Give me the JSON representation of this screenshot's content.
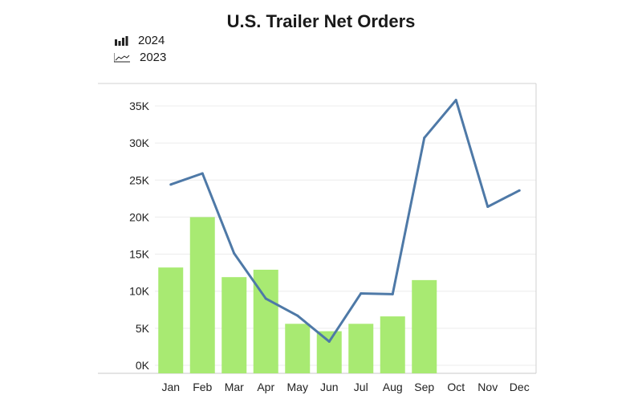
{
  "chart_data": {
    "type": "bar",
    "title": "U.S. Trailer Net Orders",
    "xlabel": "",
    "ylabel": "",
    "categories": [
      "Jan",
      "Feb",
      "Mar",
      "Apr",
      "May",
      "Jun",
      "Jul",
      "Aug",
      "Sep",
      "Oct",
      "Nov",
      "Dec"
    ],
    "ylim": [
      0,
      37500
    ],
    "yticks": [
      0,
      5000,
      10000,
      15000,
      20000,
      25000,
      30000,
      35000
    ],
    "ytick_labels": [
      "0K",
      "5K",
      "10K",
      "15K",
      "20K",
      "25K",
      "30K",
      "35K"
    ],
    "grid": true,
    "legend_position": "top-left",
    "series": [
      {
        "name": "2024",
        "type": "bar",
        "color": "#a8ea72",
        "legend_icon": "bar-chart-icon",
        "values": [
          13200,
          20000,
          11900,
          12900,
          5600,
          4600,
          5600,
          6600,
          11500,
          null,
          null,
          null
        ]
      },
      {
        "name": "2023",
        "type": "line",
        "color": "#4e79a7",
        "legend_icon": "line-chart-icon",
        "values": [
          24400,
          25900,
          15100,
          9000,
          6700,
          3200,
          9700,
          9600,
          30700,
          35800,
          21400,
          23600
        ]
      }
    ]
  }
}
